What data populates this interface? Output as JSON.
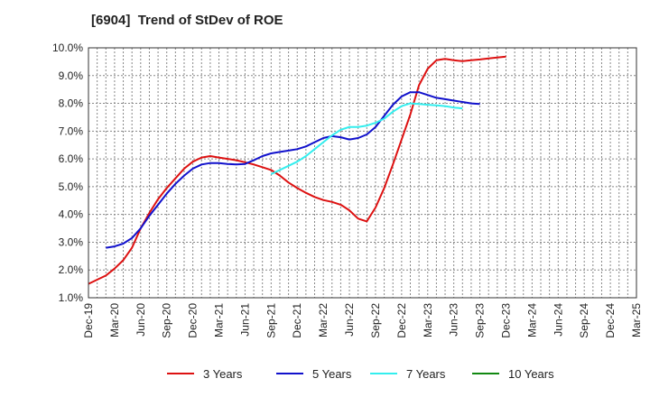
{
  "chart_data": {
    "type": "line",
    "title": "[6904]  Trend of StDev of ROE",
    "xlabel": "",
    "ylabel": "",
    "x_tick_labels": [
      "Dec-19",
      "Mar-20",
      "Jun-20",
      "Sep-20",
      "Dec-20",
      "Mar-21",
      "Jun-21",
      "Sep-21",
      "Dec-21",
      "Mar-22",
      "Jun-22",
      "Sep-22",
      "Dec-22",
      "Mar-23",
      "Jun-23",
      "Sep-23",
      "Dec-23",
      "Mar-24",
      "Jun-24",
      "Sep-24",
      "Dec-24",
      "Mar-25"
    ],
    "y_tick_labels": [
      "1.0%",
      "2.0%",
      "3.0%",
      "4.0%",
      "5.0%",
      "6.0%",
      "7.0%",
      "8.0%",
      "9.0%",
      "10.0%"
    ],
    "ylim": [
      1.0,
      10.0
    ],
    "grid": true,
    "legend_position": "bottom",
    "series": [
      {
        "name": "3 Years",
        "color": "#dd1111",
        "start_index": 0,
        "values": [
          1.5,
          1.65,
          1.8,
          2.05,
          2.35,
          2.8,
          3.5,
          4.05,
          4.55,
          4.95,
          5.3,
          5.65,
          5.9,
          6.05,
          6.1,
          6.05,
          6.0,
          5.95,
          5.88,
          5.8,
          5.7,
          5.6,
          5.4,
          5.15,
          4.95,
          4.78,
          4.63,
          4.52,
          4.45,
          4.35,
          4.15,
          3.85,
          3.75,
          4.25,
          4.95,
          5.8,
          6.7,
          7.6,
          8.65,
          9.25,
          9.55,
          9.6,
          9.55,
          9.52,
          9.55,
          9.58,
          9.62,
          9.65,
          9.68
        ]
      },
      {
        "name": "5 Years",
        "color": "#1111cc",
        "start_index": 2,
        "values": [
          2.8,
          2.85,
          2.95,
          3.15,
          3.5,
          3.95,
          4.35,
          4.75,
          5.1,
          5.4,
          5.65,
          5.8,
          5.85,
          5.85,
          5.82,
          5.8,
          5.82,
          5.95,
          6.1,
          6.2,
          6.25,
          6.3,
          6.35,
          6.45,
          6.6,
          6.75,
          6.82,
          6.78,
          6.7,
          6.75,
          6.88,
          7.15,
          7.55,
          7.95,
          8.25,
          8.4,
          8.4,
          8.3,
          8.2,
          8.15,
          8.1,
          8.05,
          8.0,
          7.98
        ]
      },
      {
        "name": "7 Years",
        "color": "#33eeee",
        "start_index": 21,
        "values": [
          5.45,
          5.6,
          5.75,
          5.9,
          6.1,
          6.35,
          6.6,
          6.85,
          7.05,
          7.15,
          7.15,
          7.2,
          7.3,
          7.45,
          7.7,
          7.9,
          8.0,
          7.98,
          7.95,
          7.93,
          7.9,
          7.85,
          7.82
        ]
      },
      {
        "name": "10 Years",
        "color": "#118811",
        "start_index": 0,
        "values": []
      }
    ]
  }
}
